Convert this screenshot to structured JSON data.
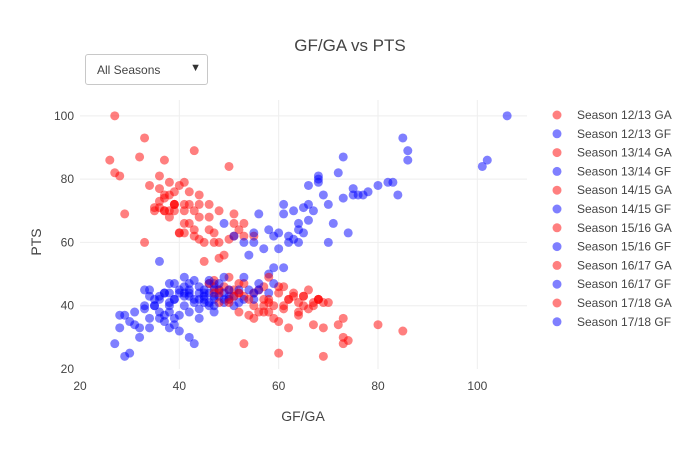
{
  "dropdown": {
    "selected": "All Seasons",
    "arrow_icon": "▼"
  },
  "chart_data": {
    "type": "scatter",
    "title": "GF/GA vs PTS",
    "xlabel": "GF/GA",
    "ylabel": "PTS",
    "xlim": [
      20,
      110
    ],
    "ylim": [
      20,
      105
    ],
    "xticks": [
      20,
      40,
      60,
      80,
      100
    ],
    "yticks": [
      20,
      40,
      60,
      80,
      100
    ],
    "grid": true,
    "legend_position": "right",
    "colors": {
      "GA": "#ff0000",
      "GF": "#0000ff"
    },
    "series": [
      {
        "name": "Season 12/13 GA",
        "kind": "GA",
        "points": [
          [
            27,
            100
          ],
          [
            26,
            86
          ],
          [
            33,
            93
          ],
          [
            37,
            86
          ],
          [
            43,
            89
          ],
          [
            29,
            69
          ],
          [
            40,
            63
          ],
          [
            47,
            63
          ],
          [
            50,
            61
          ],
          [
            52,
            64
          ],
          [
            55,
            62
          ],
          [
            50,
            49
          ],
          [
            52,
            44
          ],
          [
            57,
            46
          ],
          [
            60,
            46
          ],
          [
            62,
            42
          ],
          [
            64,
            41
          ],
          [
            66,
            45
          ],
          [
            68,
            42
          ],
          [
            70,
            41
          ],
          [
            73,
            36
          ],
          [
            74,
            29
          ],
          [
            80,
            34
          ],
          [
            85,
            32
          ]
        ]
      },
      {
        "name": "Season 12/13 GF",
        "kind": "GF",
        "points": [
          [
            27,
            28
          ],
          [
            28,
            33
          ],
          [
            29,
            24
          ],
          [
            30,
            25
          ],
          [
            31,
            38
          ],
          [
            33,
            40
          ],
          [
            34,
            36
          ],
          [
            35,
            42
          ],
          [
            36,
            38
          ],
          [
            37,
            44
          ],
          [
            38,
            40
          ],
          [
            39,
            42
          ],
          [
            40,
            45
          ],
          [
            41,
            44
          ],
          [
            42,
            47
          ],
          [
            43,
            41
          ],
          [
            44,
            42
          ],
          [
            45,
            44
          ],
          [
            46,
            47
          ],
          [
            47,
            42
          ],
          [
            48,
            45
          ],
          [
            50,
            42
          ],
          [
            58,
            50
          ],
          [
            66,
            78
          ],
          [
            68,
            81
          ],
          [
            75,
            75
          ],
          [
            80,
            78
          ],
          [
            85,
            93
          ],
          [
            86,
            89
          ],
          [
            102,
            86
          ]
        ]
      },
      {
        "name": "Season 13/14 GA",
        "kind": "GA",
        "points": [
          [
            27,
            82
          ],
          [
            28,
            81
          ],
          [
            32,
            87
          ],
          [
            34,
            78
          ],
          [
            36,
            81
          ],
          [
            36,
            77
          ],
          [
            37,
            74
          ],
          [
            38,
            79
          ],
          [
            39,
            76
          ],
          [
            39,
            72
          ],
          [
            41,
            79
          ],
          [
            42,
            76
          ],
          [
            44,
            75
          ],
          [
            46,
            72
          ],
          [
            48,
            70
          ],
          [
            51,
            69
          ],
          [
            53,
            66
          ],
          [
            46,
            47
          ],
          [
            48,
            45
          ],
          [
            52,
            47
          ],
          [
            56,
            45
          ],
          [
            58,
            49
          ],
          [
            61,
            46
          ],
          [
            63,
            43
          ],
          [
            65,
            40
          ],
          [
            69,
            41
          ],
          [
            72,
            34
          ],
          [
            73,
            30
          ]
        ]
      },
      {
        "name": "Season 13/14 GF",
        "kind": "GF",
        "points": [
          [
            28,
            37
          ],
          [
            30,
            35
          ],
          [
            32,
            33
          ],
          [
            34,
            43
          ],
          [
            35,
            40
          ],
          [
            37,
            35
          ],
          [
            38,
            33
          ],
          [
            39,
            36
          ],
          [
            41,
            40
          ],
          [
            42,
            38
          ],
          [
            43,
            42
          ],
          [
            45,
            41
          ],
          [
            46,
            44
          ],
          [
            47,
            38
          ],
          [
            48,
            43
          ],
          [
            49,
            41
          ],
          [
            54,
            56
          ],
          [
            55,
            60
          ],
          [
            57,
            58
          ],
          [
            60,
            63
          ],
          [
            61,
            72
          ],
          [
            63,
            70
          ],
          [
            65,
            71
          ],
          [
            68,
            80
          ],
          [
            70,
            72
          ],
          [
            73,
            87
          ],
          [
            77,
            75
          ],
          [
            83,
            79
          ],
          [
            84,
            75
          ],
          [
            101,
            84
          ]
        ]
      },
      {
        "name": "Season 14/15 GA",
        "kind": "GA",
        "points": [
          [
            33,
            60
          ],
          [
            35,
            70
          ],
          [
            36,
            71
          ],
          [
            37,
            75
          ],
          [
            38,
            70
          ],
          [
            39,
            70
          ],
          [
            41,
            66
          ],
          [
            43,
            64
          ],
          [
            44,
            61
          ],
          [
            45,
            54
          ],
          [
            47,
            60
          ],
          [
            49,
            56
          ],
          [
            51,
            66
          ],
          [
            53,
            62
          ],
          [
            47,
            46
          ],
          [
            50,
            42
          ],
          [
            53,
            43
          ],
          [
            55,
            40
          ],
          [
            57,
            38
          ],
          [
            59,
            36
          ],
          [
            61,
            40
          ],
          [
            64,
            37
          ],
          [
            67,
            34
          ],
          [
            69,
            24
          ],
          [
            53,
            28
          ],
          [
            60,
            25
          ]
        ]
      },
      {
        "name": "Season 14/15 GF",
        "kind": "GF",
        "points": [
          [
            29,
            37
          ],
          [
            31,
            34
          ],
          [
            33,
            39
          ],
          [
            34,
            45
          ],
          [
            36,
            42
          ],
          [
            37,
            44
          ],
          [
            38,
            38
          ],
          [
            40,
            37
          ],
          [
            41,
            43
          ],
          [
            42,
            44
          ],
          [
            44,
            39
          ],
          [
            45,
            45
          ],
          [
            47,
            47
          ],
          [
            49,
            49
          ],
          [
            51,
            43
          ],
          [
            52,
            41
          ],
          [
            54,
            45
          ],
          [
            56,
            47
          ],
          [
            59,
            47
          ],
          [
            61,
            52
          ],
          [
            63,
            61
          ],
          [
            64,
            66
          ],
          [
            66,
            67
          ],
          [
            71,
            66
          ],
          [
            74,
            63
          ],
          [
            76,
            75
          ],
          [
            82,
            79
          ],
          [
            86,
            86
          ],
          [
            106,
            100
          ]
        ]
      },
      {
        "name": "Season 15/16 GA",
        "kind": "GA",
        "points": [
          [
            35,
            71
          ],
          [
            36,
            73
          ],
          [
            38,
            75
          ],
          [
            40,
            63
          ],
          [
            41,
            63
          ],
          [
            42,
            66
          ],
          [
            43,
            62
          ],
          [
            45,
            60
          ],
          [
            48,
            55
          ],
          [
            51,
            62
          ],
          [
            47,
            48
          ],
          [
            49,
            46
          ],
          [
            51,
            45
          ],
          [
            53,
            47
          ],
          [
            55,
            44
          ],
          [
            57,
            42
          ],
          [
            59,
            40
          ],
          [
            61,
            39
          ],
          [
            63,
            44
          ],
          [
            65,
            43
          ],
          [
            67,
            41
          ],
          [
            68,
            42
          ],
          [
            69,
            33
          ],
          [
            73,
            28
          ]
        ]
      },
      {
        "name": "Season 15/16 GF",
        "kind": "GF",
        "points": [
          [
            32,
            30
          ],
          [
            34,
            33
          ],
          [
            36,
            36
          ],
          [
            37,
            37
          ],
          [
            38,
            41
          ],
          [
            39,
            42
          ],
          [
            40,
            44
          ],
          [
            41,
            46
          ],
          [
            42,
            45
          ],
          [
            43,
            48
          ],
          [
            44,
            44
          ],
          [
            45,
            42
          ],
          [
            46,
            41
          ],
          [
            47,
            45
          ],
          [
            48,
            47
          ],
          [
            49,
            44
          ],
          [
            50,
            43
          ],
          [
            51,
            40
          ],
          [
            53,
            49
          ],
          [
            55,
            44
          ],
          [
            58,
            44
          ],
          [
            62,
            62
          ],
          [
            64,
            64
          ],
          [
            67,
            70
          ],
          [
            70,
            60
          ]
        ]
      },
      {
        "name": "Season 16/17 GA",
        "kind": "GA",
        "points": [
          [
            37,
            70
          ],
          [
            39,
            72
          ],
          [
            40,
            78
          ],
          [
            41,
            70
          ],
          [
            42,
            72
          ],
          [
            44,
            72
          ],
          [
            46,
            68
          ],
          [
            47,
            44
          ],
          [
            48,
            41
          ],
          [
            50,
            45
          ],
          [
            51,
            43
          ],
          [
            52,
            38
          ],
          [
            54,
            37
          ],
          [
            55,
            36
          ],
          [
            57,
            40
          ],
          [
            58,
            38
          ],
          [
            60,
            35
          ],
          [
            62,
            33
          ],
          [
            64,
            38
          ],
          [
            66,
            39
          ],
          [
            68,
            42
          ],
          [
            58,
            42
          ]
        ]
      },
      {
        "name": "Season 16/17 GF",
        "kind": "GF",
        "points": [
          [
            33,
            45
          ],
          [
            35,
            40
          ],
          [
            36,
            43
          ],
          [
            38,
            44
          ],
          [
            39,
            47
          ],
          [
            41,
            49
          ],
          [
            42,
            43
          ],
          [
            44,
            46
          ],
          [
            45,
            43
          ],
          [
            46,
            48
          ],
          [
            47,
            40
          ],
          [
            49,
            42
          ],
          [
            50,
            45
          ],
          [
            52,
            45
          ],
          [
            53,
            42
          ],
          [
            55,
            42
          ],
          [
            56,
            45
          ],
          [
            59,
            52
          ],
          [
            60,
            58
          ],
          [
            62,
            60
          ],
          [
            65,
            63
          ],
          [
            68,
            79
          ],
          [
            72,
            82
          ]
        ]
      },
      {
        "name": "Season 17/18 GA",
        "kind": "GA",
        "points": [
          [
            37,
            70
          ],
          [
            38,
            68
          ],
          [
            39,
            72
          ],
          [
            41,
            72
          ],
          [
            43,
            70
          ],
          [
            44,
            68
          ],
          [
            46,
            64
          ],
          [
            48,
            60
          ],
          [
            50,
            84
          ],
          [
            48,
            44
          ],
          [
            50,
            41
          ],
          [
            52,
            44
          ],
          [
            54,
            42
          ],
          [
            56,
            38
          ],
          [
            58,
            41
          ],
          [
            60,
            44
          ],
          [
            62,
            42
          ],
          [
            65,
            43
          ],
          [
            67,
            40
          ]
        ]
      },
      {
        "name": "Season 17/18 GF",
        "kind": "GF",
        "points": [
          [
            36,
            54
          ],
          [
            38,
            47
          ],
          [
            39,
            34
          ],
          [
            40,
            32
          ],
          [
            42,
            30
          ],
          [
            43,
            28
          ],
          [
            44,
            36
          ],
          [
            46,
            40
          ],
          [
            47,
            43
          ],
          [
            49,
            66
          ],
          [
            51,
            62
          ],
          [
            53,
            60
          ],
          [
            55,
            63
          ],
          [
            56,
            69
          ],
          [
            58,
            64
          ],
          [
            59,
            62
          ],
          [
            61,
            69
          ],
          [
            64,
            60
          ],
          [
            66,
            72
          ],
          [
            69,
            75
          ],
          [
            73,
            74
          ],
          [
            75,
            77
          ],
          [
            78,
            76
          ]
        ]
      }
    ]
  }
}
